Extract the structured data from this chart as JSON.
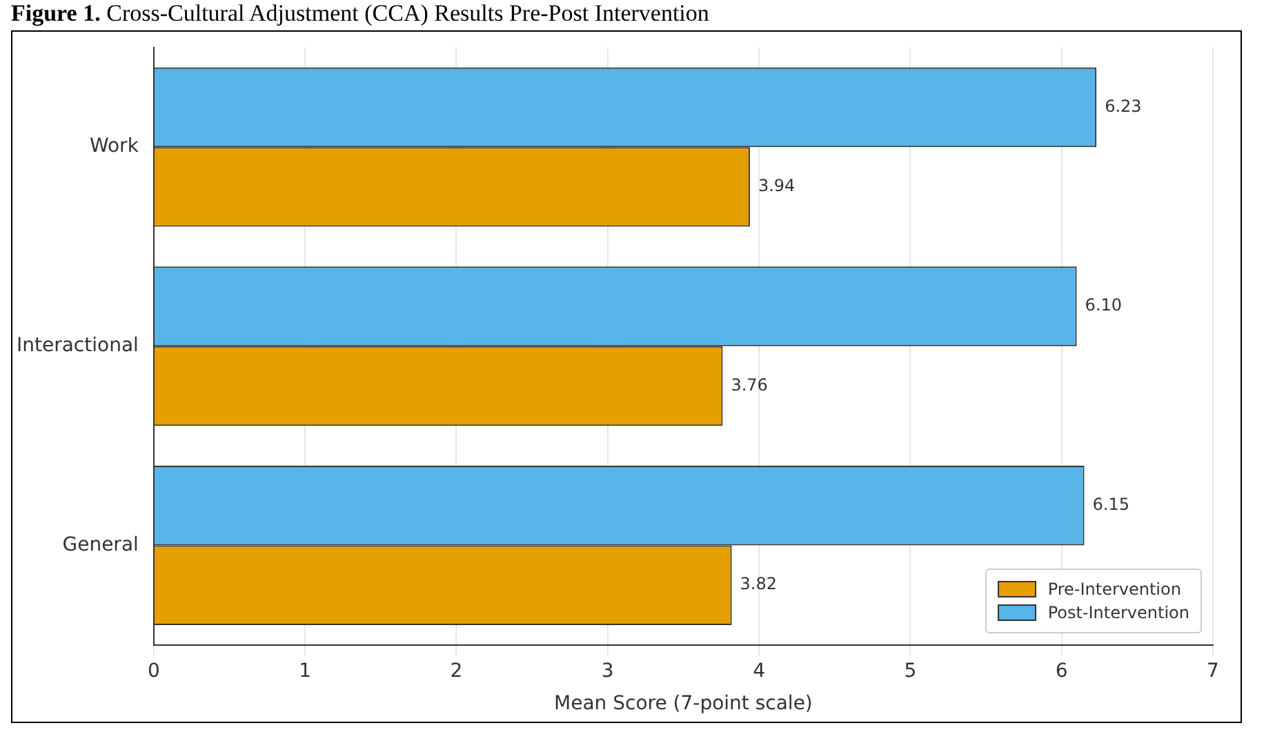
{
  "chart_data": {
    "type": "bar",
    "orientation": "horizontal",
    "title": "Figure 1. Cross-Cultural Adjustment (CCA) Results Pre-Post Intervention",
    "xlabel": "Mean Score (7-point scale)",
    "categories": [
      "Work",
      "Interactional",
      "General"
    ],
    "series": [
      {
        "name": "Post-Intervention",
        "color": "#56b4e9",
        "values": [
          6.23,
          6.1,
          6.15
        ],
        "value_labels": [
          "6.23",
          "6.10",
          "6.15"
        ]
      },
      {
        "name": "Pre-Intervention",
        "color": "#e69f00",
        "values": [
          3.94,
          3.76,
          3.82
        ],
        "value_labels": [
          "3.94",
          "3.76",
          "3.82"
        ]
      }
    ],
    "xlim": [
      0,
      7
    ],
    "xticks": [
      0,
      1,
      2,
      3,
      4,
      5,
      6,
      7
    ],
    "grid": "x",
    "legend": "bottom right"
  }
}
